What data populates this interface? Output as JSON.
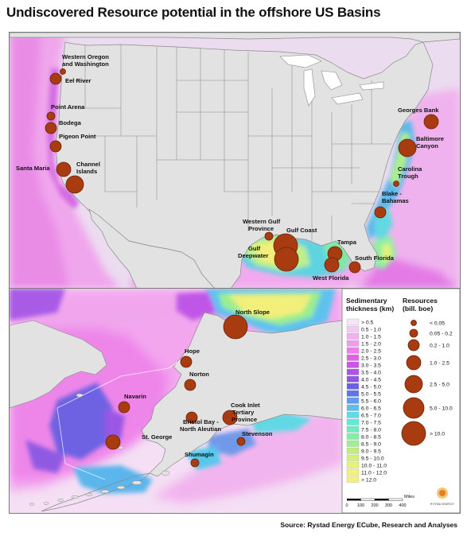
{
  "title": "Undiscovered Resource potential in the offshore US Basins",
  "source": "Source: Rystad Energy ECube, Research and Analyses",
  "lower48_basins": [
    {
      "name": "Western Oregon and Washington",
      "resource_class": "< 0.05"
    },
    {
      "name": "Eel River",
      "resource_class": "0.2 - 1.0"
    },
    {
      "name": "Point Arena",
      "resource_class": "0.05 - 0.2"
    },
    {
      "name": "Bodega",
      "resource_class": "0.2 - 1.0"
    },
    {
      "name": "Pigeon Point",
      "resource_class": "0.2 - 1.0"
    },
    {
      "name": "Santa Maria",
      "resource_class": "1.0 - 2.5"
    },
    {
      "name": "Channel Islands",
      "resource_class": "2.5 - 5.0"
    },
    {
      "name": "Georges Bank",
      "resource_class": "1.0 - 2.5"
    },
    {
      "name": "Baltimore Canyon",
      "resource_class": "2.5 - 5.0"
    },
    {
      "name": "Carolina Trough",
      "resource_class": "< 0.05"
    },
    {
      "name": "Blake - Bahamas",
      "resource_class": "0.2 - 1.0"
    },
    {
      "name": "Western Gulf Province",
      "resource_class": "0.05 - 0.2"
    },
    {
      "name": "Gulf Coast",
      "resource_class": "> 10.0"
    },
    {
      "name": "Gulf Deepwater",
      "resource_class": "> 10.0"
    },
    {
      "name": "Tampa",
      "resource_class": "1.0 - 2.5"
    },
    {
      "name": "South Florida",
      "resource_class": "0.2 - 1.0"
    },
    {
      "name": "West Florida",
      "resource_class": "1.0 - 2.5"
    }
  ],
  "alaska_basins": [
    {
      "name": "North Slope",
      "resource_class": "> 10.0"
    },
    {
      "name": "Hope",
      "resource_class": "0.2 - 1.0"
    },
    {
      "name": "Norton",
      "resource_class": "0.2 - 1.0"
    },
    {
      "name": "Navarin",
      "resource_class": "0.2 - 1.0"
    },
    {
      "name": "Cook Inlet Tertiary Province",
      "resource_class": "1.0 - 2.5"
    },
    {
      "name": "Bristol Bay - North Aleutian",
      "resource_class": "0.2 - 1.0"
    },
    {
      "name": "St. George",
      "resource_class": "1.0 - 2.5"
    },
    {
      "name": "Stevenson",
      "resource_class": "0.05 - 0.2"
    },
    {
      "name": "Shumagin",
      "resource_class": "0.05 - 0.2"
    }
  ],
  "legend": {
    "thickness_title": "Sedimentary thickness (km)",
    "resources_title": "Resources (bill. boe)",
    "thickness_classes": [
      {
        "label": "> 0.5",
        "color": "#f4e6f4"
      },
      {
        "label": "0.5 - 1.0",
        "color": "#f3caf1"
      },
      {
        "label": "1.0 - 1.5",
        "color": "#f1b0ee"
      },
      {
        "label": "1.5 - 2.0",
        "color": "#f29aee"
      },
      {
        "label": "2.0 - 2.5",
        "color": "#f07ced"
      },
      {
        "label": "2.5 - 3.0",
        "color": "#e45fe8"
      },
      {
        "label": "3.0 - 3.5",
        "color": "#cc55e6"
      },
      {
        "label": "3.5 - 4.0",
        "color": "#b052e6"
      },
      {
        "label": "4.0 - 4.5",
        "color": "#8e57e3"
      },
      {
        "label": "4.5 - 5.0",
        "color": "#6c5fe0"
      },
      {
        "label": "5.0 - 5.5",
        "color": "#5a78e6"
      },
      {
        "label": "5.5 - 6.0",
        "color": "#5f9ded"
      },
      {
        "label": "6.0 - 6.5",
        "color": "#5cc0ee"
      },
      {
        "label": "6.5 - 7.0",
        "color": "#5ddbe8"
      },
      {
        "label": "7.0 - 7.5",
        "color": "#62e8d6"
      },
      {
        "label": "7.5 - 8.0",
        "color": "#6cecc0"
      },
      {
        "label": "8.0 - 8.5",
        "color": "#82eea8"
      },
      {
        "label": "8.5 - 9.0",
        "color": "#a2ef90"
      },
      {
        "label": "9.0 - 9.5",
        "color": "#c0ef80"
      },
      {
        "label": "9.5 - 10.0",
        "color": "#d7f07a"
      },
      {
        "label": "10.0 - 11.0",
        "color": "#e8f279"
      },
      {
        "label": "11.0 - 12.0",
        "color": "#f3f27a"
      },
      {
        "label": "> 12.0",
        "color": "#f8f07c"
      }
    ],
    "resource_classes": [
      "< 0.05",
      "0.05 - 0.2",
      "0.2 - 1.0",
      "1.0 - 2.5",
      "2.5 - 5.0",
      "5.0 - 10.0",
      "> 10.0"
    ],
    "scale_unit": "Miles",
    "scale_ticks": [
      "0",
      "100",
      "200",
      "300",
      "400"
    ],
    "logo_text": "RYSTAD ENERGY"
  },
  "colors": {
    "land": "#e2e2e2",
    "land_border": "#8a8a8a",
    "bubble_fill": "#a83b10",
    "bubble_stroke": "#6b2208"
  }
}
